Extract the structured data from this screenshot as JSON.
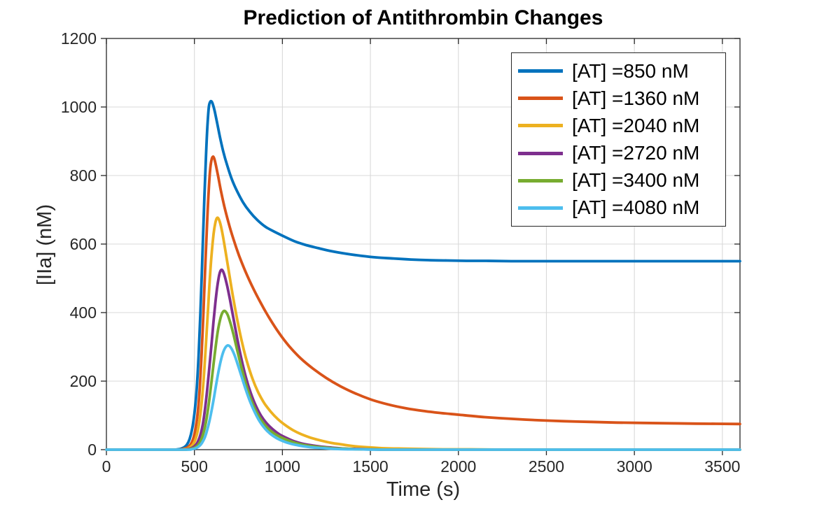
{
  "figure": {
    "background": "#ffffff"
  },
  "chart_data": {
    "type": "line",
    "title": "Prediction of Antithrombin Changes",
    "xlabel": "Time (s)",
    "ylabel": "[IIa] (nM)",
    "xlim": [
      0,
      3600
    ],
    "ylim": [
      0,
      1200
    ],
    "xticks": [
      0,
      500,
      1000,
      1500,
      2000,
      2500,
      3000,
      3500
    ],
    "yticks": [
      0,
      200,
      400,
      600,
      800,
      1000,
      1200
    ],
    "grid": true,
    "legend_position": "top-right",
    "axis_color": "#262626",
    "grid_color": "#d9d9d9",
    "line_width": 3.8,
    "series": [
      {
        "name": "[AT] =850 nM",
        "color": "#0072BD",
        "points": [
          [
            0,
            0
          ],
          [
            150,
            0
          ],
          [
            300,
            0
          ],
          [
            380,
            0
          ],
          [
            405,
            1
          ],
          [
            425,
            3
          ],
          [
            442,
            7
          ],
          [
            458,
            15
          ],
          [
            472,
            30
          ],
          [
            487,
            60
          ],
          [
            500,
            105
          ],
          [
            512,
            170
          ],
          [
            524,
            275
          ],
          [
            536,
            425
          ],
          [
            547,
            590
          ],
          [
            557,
            740
          ],
          [
            566,
            860
          ],
          [
            574,
            945
          ],
          [
            582,
            1000
          ],
          [
            590,
            1015
          ],
          [
            598,
            1016
          ],
          [
            606,
            1006
          ],
          [
            616,
            986
          ],
          [
            629,
            954
          ],
          [
            645,
            913
          ],
          [
            664,
            870
          ],
          [
            686,
            830
          ],
          [
            712,
            790
          ],
          [
            742,
            755
          ],
          [
            776,
            722
          ],
          [
            815,
            694
          ],
          [
            858,
            670
          ],
          [
            905,
            650
          ],
          [
            955,
            636
          ],
          [
            1010,
            622
          ],
          [
            1070,
            608
          ],
          [
            1135,
            597
          ],
          [
            1205,
            588
          ],
          [
            1280,
            579
          ],
          [
            1360,
            572
          ],
          [
            1445,
            566
          ],
          [
            1535,
            561
          ],
          [
            1630,
            558
          ],
          [
            1730,
            555
          ],
          [
            1830,
            553
          ],
          [
            1935,
            552
          ],
          [
            2045,
            551
          ],
          [
            2160,
            551
          ],
          [
            2300,
            550
          ],
          [
            2500,
            550
          ],
          [
            2750,
            550
          ],
          [
            3000,
            550
          ],
          [
            3250,
            550
          ],
          [
            3600,
            550
          ]
        ]
      },
      {
        "name": "[AT] =1360 nM",
        "color": "#D95319",
        "points": [
          [
            0,
            0
          ],
          [
            150,
            0
          ],
          [
            300,
            0
          ],
          [
            400,
            0
          ],
          [
            425,
            1
          ],
          [
            445,
            3
          ],
          [
            462,
            7
          ],
          [
            478,
            15
          ],
          [
            492,
            30
          ],
          [
            505,
            58
          ],
          [
            517,
            100
          ],
          [
            529,
            170
          ],
          [
            541,
            280
          ],
          [
            552,
            410
          ],
          [
            562,
            540
          ],
          [
            572,
            660
          ],
          [
            581,
            755
          ],
          [
            589,
            815
          ],
          [
            597,
            845
          ],
          [
            605,
            855
          ],
          [
            613,
            849
          ],
          [
            622,
            830
          ],
          [
            634,
            800
          ],
          [
            650,
            757
          ],
          [
            670,
            710
          ],
          [
            694,
            662
          ],
          [
            722,
            614
          ],
          [
            754,
            566
          ],
          [
            790,
            520
          ],
          [
            830,
            475
          ],
          [
            875,
            430
          ],
          [
            925,
            385
          ],
          [
            980,
            341
          ],
          [
            1040,
            301
          ],
          [
            1105,
            266
          ],
          [
            1175,
            236
          ],
          [
            1250,
            209
          ],
          [
            1330,
            185
          ],
          [
            1415,
            164
          ],
          [
            1505,
            146
          ],
          [
            1600,
            132
          ],
          [
            1700,
            121
          ],
          [
            1800,
            113
          ],
          [
            1900,
            107
          ],
          [
            2000,
            102
          ],
          [
            2150,
            95
          ],
          [
            2300,
            90
          ],
          [
            2450,
            86
          ],
          [
            2600,
            83
          ],
          [
            2750,
            81
          ],
          [
            2900,
            79
          ],
          [
            3050,
            78
          ],
          [
            3200,
            77
          ],
          [
            3350,
            76
          ],
          [
            3600,
            75
          ]
        ]
      },
      {
        "name": "[AT] =2040 nM",
        "color": "#EDB120",
        "points": [
          [
            0,
            0
          ],
          [
            150,
            0
          ],
          [
            300,
            0
          ],
          [
            415,
            0
          ],
          [
            440,
            1
          ],
          [
            460,
            3
          ],
          [
            478,
            8
          ],
          [
            494,
            17
          ],
          [
            508,
            33
          ],
          [
            521,
            60
          ],
          [
            533,
            100
          ],
          [
            545,
            158
          ],
          [
            557,
            238
          ],
          [
            568,
            330
          ],
          [
            579,
            425
          ],
          [
            589,
            510
          ],
          [
            599,
            578
          ],
          [
            609,
            630
          ],
          [
            619,
            662
          ],
          [
            628,
            676
          ],
          [
            637,
            674
          ],
          [
            648,
            658
          ],
          [
            661,
            626
          ],
          [
            677,
            578
          ],
          [
            696,
            518
          ],
          [
            718,
            450
          ],
          [
            743,
            380
          ],
          [
            770,
            314
          ],
          [
            799,
            256
          ],
          [
            830,
            207
          ],
          [
            863,
            167
          ],
          [
            898,
            135
          ],
          [
            935,
            110
          ],
          [
            974,
            89
          ],
          [
            1015,
            72
          ],
          [
            1060,
            57
          ],
          [
            1108,
            45
          ],
          [
            1160,
            35
          ],
          [
            1216,
            27
          ],
          [
            1276,
            20
          ],
          [
            1340,
            15
          ],
          [
            1410,
            10
          ],
          [
            1490,
            7
          ],
          [
            1580,
            4
          ],
          [
            1680,
            3
          ],
          [
            1790,
            2
          ],
          [
            1910,
            1
          ],
          [
            2050,
            1
          ],
          [
            2250,
            0
          ],
          [
            2600,
            0
          ],
          [
            3000,
            0
          ],
          [
            3600,
            0
          ]
        ]
      },
      {
        "name": "[AT] =2720 nM",
        "color": "#7E2F8E",
        "points": [
          [
            0,
            0
          ],
          [
            150,
            0
          ],
          [
            300,
            0
          ],
          [
            430,
            0
          ],
          [
            455,
            1
          ],
          [
            475,
            3
          ],
          [
            492,
            7
          ],
          [
            508,
            14
          ],
          [
            522,
            26
          ],
          [
            535,
            45
          ],
          [
            548,
            75
          ],
          [
            560,
            118
          ],
          [
            572,
            172
          ],
          [
            584,
            235
          ],
          [
            596,
            300
          ],
          [
            608,
            370
          ],
          [
            619,
            428
          ],
          [
            629,
            472
          ],
          [
            638,
            502
          ],
          [
            646,
            519
          ],
          [
            654,
            525
          ],
          [
            662,
            521
          ],
          [
            673,
            505
          ],
          [
            686,
            478
          ],
          [
            702,
            438
          ],
          [
            721,
            385
          ],
          [
            743,
            325
          ],
          [
            767,
            265
          ],
          [
            793,
            210
          ],
          [
            821,
            164
          ],
          [
            850,
            127
          ],
          [
            880,
            98
          ],
          [
            912,
            76
          ],
          [
            946,
            59
          ],
          [
            982,
            45
          ],
          [
            1020,
            35
          ],
          [
            1064,
            25
          ],
          [
            1110,
            18
          ],
          [
            1162,
            13
          ],
          [
            1218,
            9
          ],
          [
            1280,
            6
          ],
          [
            1350,
            3
          ],
          [
            1425,
            2
          ],
          [
            1510,
            1
          ],
          [
            1610,
            0
          ],
          [
            2000,
            0
          ],
          [
            2600,
            0
          ],
          [
            3600,
            0
          ]
        ]
      },
      {
        "name": "[AT] =3400 nM",
        "color": "#77AC30",
        "points": [
          [
            0,
            0
          ],
          [
            150,
            0
          ],
          [
            300,
            0
          ],
          [
            445,
            0
          ],
          [
            468,
            1
          ],
          [
            488,
            3
          ],
          [
            505,
            7
          ],
          [
            520,
            13
          ],
          [
            534,
            24
          ],
          [
            547,
            41
          ],
          [
            560,
            66
          ],
          [
            572,
            100
          ],
          [
            584,
            143
          ],
          [
            596,
            193
          ],
          [
            608,
            246
          ],
          [
            620,
            298
          ],
          [
            632,
            343
          ],
          [
            644,
            375
          ],
          [
            655,
            395
          ],
          [
            666,
            404
          ],
          [
            677,
            403
          ],
          [
            690,
            392
          ],
          [
            705,
            369
          ],
          [
            723,
            334
          ],
          [
            744,
            289
          ],
          [
            768,
            238
          ],
          [
            794,
            189
          ],
          [
            822,
            146
          ],
          [
            852,
            111
          ],
          [
            883,
            84
          ],
          [
            916,
            63
          ],
          [
            951,
            48
          ],
          [
            988,
            37
          ],
          [
            1028,
            28
          ],
          [
            1071,
            20
          ],
          [
            1118,
            14
          ],
          [
            1169,
            10
          ],
          [
            1225,
            7
          ],
          [
            1286,
            4
          ],
          [
            1353,
            3
          ],
          [
            1427,
            1
          ],
          [
            1510,
            1
          ],
          [
            1605,
            0
          ],
          [
            1900,
            0
          ],
          [
            2600,
            0
          ],
          [
            3600,
            0
          ]
        ]
      },
      {
        "name": "[AT] =4080 nM",
        "color": "#4DBEEE",
        "points": [
          [
            0,
            0
          ],
          [
            150,
            0
          ],
          [
            300,
            0
          ],
          [
            460,
            0
          ],
          [
            482,
            1
          ],
          [
            501,
            3
          ],
          [
            518,
            7
          ],
          [
            533,
            13
          ],
          [
            547,
            23
          ],
          [
            560,
            37
          ],
          [
            573,
            58
          ],
          [
            586,
            85
          ],
          [
            599,
            118
          ],
          [
            612,
            155
          ],
          [
            625,
            194
          ],
          [
            638,
            231
          ],
          [
            651,
            262
          ],
          [
            664,
            285
          ],
          [
            676,
            298
          ],
          [
            688,
            304
          ],
          [
            700,
            302
          ],
          [
            713,
            293
          ],
          [
            728,
            276
          ],
          [
            746,
            249
          ],
          [
            767,
            215
          ],
          [
            790,
            178
          ],
          [
            815,
            142
          ],
          [
            842,
            110
          ],
          [
            870,
            83
          ],
          [
            900,
            62
          ],
          [
            932,
            46
          ],
          [
            966,
            34
          ],
          [
            1003,
            25
          ],
          [
            1043,
            18
          ],
          [
            1086,
            13
          ],
          [
            1133,
            9
          ],
          [
            1184,
            6
          ],
          [
            1240,
            4
          ],
          [
            1302,
            2
          ],
          [
            1370,
            1
          ],
          [
            1448,
            1
          ],
          [
            1536,
            0
          ],
          [
            1800,
            0
          ],
          [
            2600,
            0
          ],
          [
            3600,
            0
          ]
        ]
      }
    ]
  }
}
